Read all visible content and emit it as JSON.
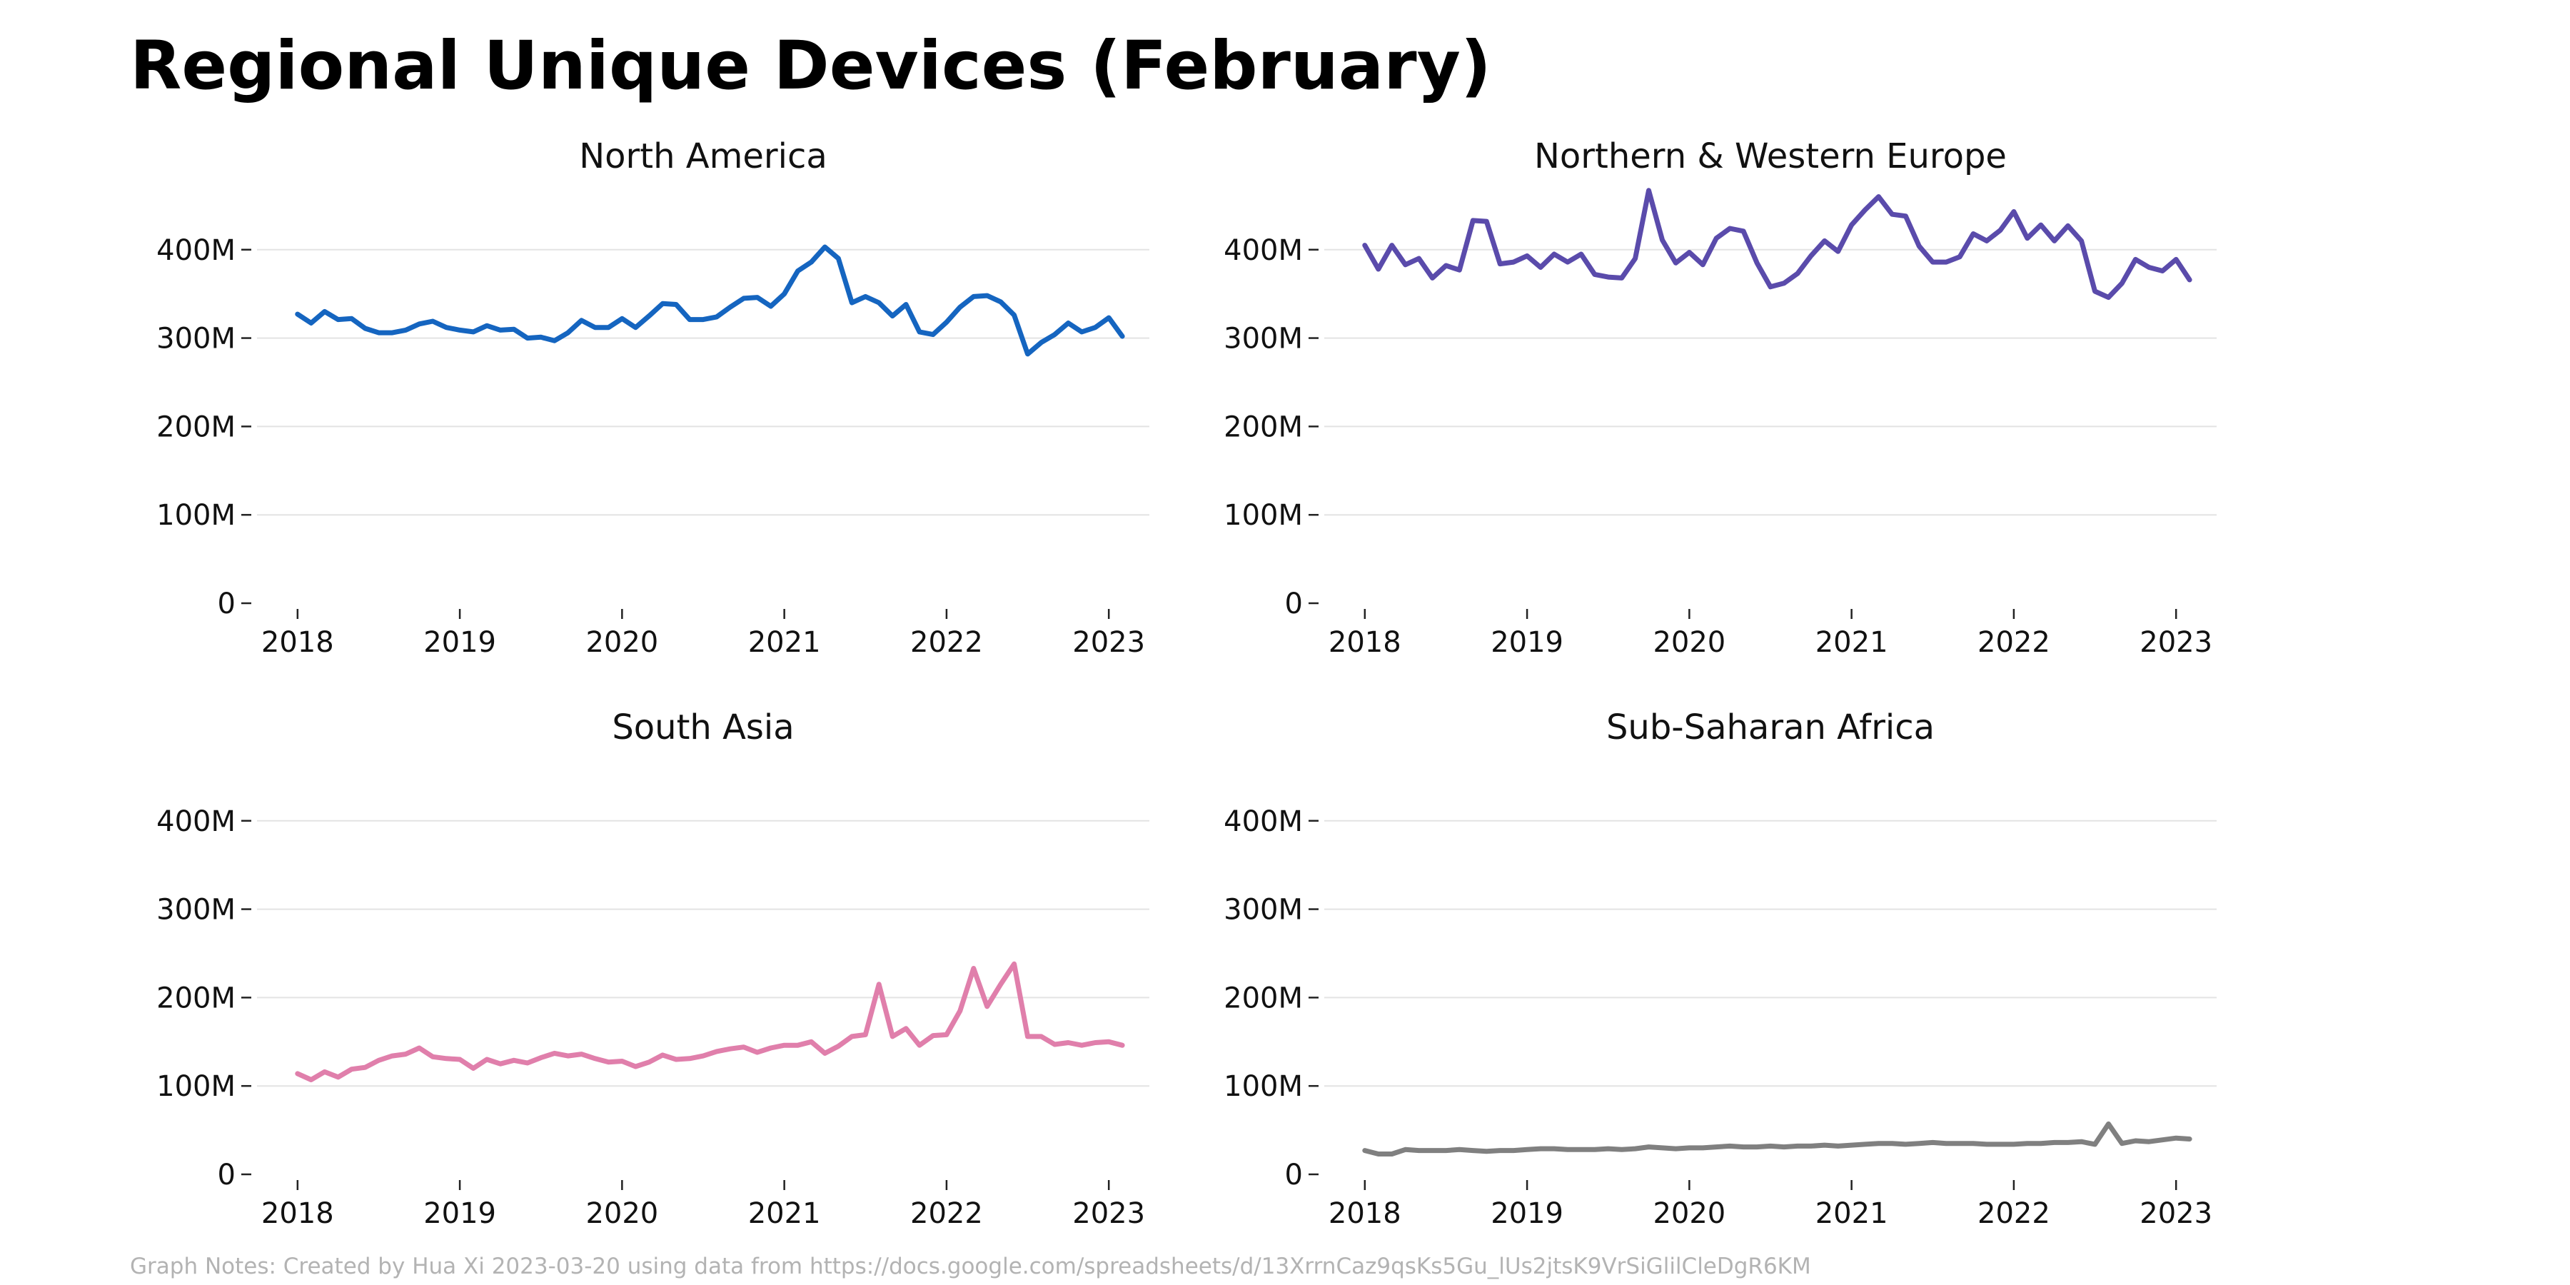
{
  "title": "Regional Unique Devices (February)",
  "footnote": "Graph Notes: Created by Hua Xi 2023-03-20 using data from https://docs.google.com/spreadsheets/d/13XrrnCaz9qsKs5Gu_lUs2jtsK9VrSiGlilCleDgR6KM",
  "chart_data": [
    {
      "type": "line",
      "title": "North America",
      "color": "#1565c0",
      "xlabel": "",
      "ylabel": "",
      "x_ticks": [
        "2018",
        "2019",
        "2020",
        "2021",
        "2022",
        "2023"
      ],
      "y_ticks": [
        {
          "value": 0,
          "label": "0"
        },
        {
          "value": 100,
          "label": "100M"
        },
        {
          "value": 200,
          "label": "200M"
        },
        {
          "value": 300,
          "label": "300M"
        },
        {
          "value": 400,
          "label": "400M"
        }
      ],
      "xlim": [
        2017.75,
        2023.25
      ],
      "ylim": [
        0,
        420
      ],
      "grid": "horizontal",
      "y_unit": "millions of unique devices",
      "x": [
        "2018-01",
        "2018-02",
        "2018-03",
        "2018-04",
        "2018-05",
        "2018-06",
        "2018-07",
        "2018-08",
        "2018-09",
        "2018-10",
        "2018-11",
        "2018-12",
        "2019-01",
        "2019-02",
        "2019-03",
        "2019-04",
        "2019-05",
        "2019-06",
        "2019-07",
        "2019-08",
        "2019-09",
        "2019-10",
        "2019-11",
        "2019-12",
        "2020-01",
        "2020-02",
        "2020-03",
        "2020-04",
        "2020-05",
        "2020-06",
        "2020-07",
        "2020-08",
        "2020-09",
        "2020-10",
        "2020-11",
        "2020-12",
        "2021-01",
        "2021-02",
        "2021-03",
        "2021-04",
        "2021-05",
        "2021-06",
        "2021-07",
        "2021-08",
        "2021-09",
        "2021-10",
        "2021-11",
        "2021-12",
        "2022-01",
        "2022-02",
        "2022-03",
        "2022-04",
        "2022-05",
        "2022-06",
        "2022-07",
        "2022-08",
        "2022-09",
        "2022-10",
        "2022-11",
        "2022-12",
        "2023-01",
        "2023-02"
      ],
      "values": [
        327,
        317,
        330,
        321,
        322,
        311,
        306,
        306,
        309,
        316,
        319,
        312,
        309,
        307,
        314,
        309,
        310,
        300,
        301,
        297,
        306,
        320,
        312,
        312,
        322,
        312,
        325,
        339,
        338,
        321,
        321,
        324,
        335,
        345,
        346,
        336,
        350,
        376,
        386,
        403,
        390,
        340,
        347,
        340,
        325,
        338,
        307,
        304,
        318,
        335,
        347,
        348,
        341,
        326,
        282,
        295,
        304,
        317,
        307,
        312,
        323,
        302
      ]
    },
    {
      "type": "line",
      "title": "Northern & Western Europe",
      "color": "#5a4bab",
      "xlabel": "",
      "ylabel": "",
      "x_ticks": [
        "2018",
        "2019",
        "2020",
        "2021",
        "2022",
        "2023"
      ],
      "y_ticks": [
        {
          "value": 0,
          "label": "0"
        },
        {
          "value": 100,
          "label": "100M"
        },
        {
          "value": 200,
          "label": "200M"
        },
        {
          "value": 300,
          "label": "300M"
        },
        {
          "value": 400,
          "label": "400M"
        }
      ],
      "xlim": [
        2017.75,
        2023.25
      ],
      "ylim": [
        0,
        420
      ],
      "grid": "horizontal",
      "y_unit": "millions of unique devices",
      "x": [
        "2018-01",
        "2018-02",
        "2018-03",
        "2018-04",
        "2018-05",
        "2018-06",
        "2018-07",
        "2018-08",
        "2018-09",
        "2018-10",
        "2018-11",
        "2018-12",
        "2019-01",
        "2019-02",
        "2019-03",
        "2019-04",
        "2019-05",
        "2019-06",
        "2019-07",
        "2019-08",
        "2019-09",
        "2019-10",
        "2019-11",
        "2019-12",
        "2020-01",
        "2020-02",
        "2020-03",
        "2020-04",
        "2020-05",
        "2020-06",
        "2020-07",
        "2020-08",
        "2020-09",
        "2020-10",
        "2020-11",
        "2020-12",
        "2021-01",
        "2021-02",
        "2021-03",
        "2021-04",
        "2021-05",
        "2021-06",
        "2021-07",
        "2021-08",
        "2021-09",
        "2021-10",
        "2021-11",
        "2021-12",
        "2022-01",
        "2022-02",
        "2022-03",
        "2022-04",
        "2022-05",
        "2022-06",
        "2022-07",
        "2022-08",
        "2022-09",
        "2022-10",
        "2022-11",
        "2022-12",
        "2023-01",
        "2023-02"
      ],
      "values": [
        405,
        378,
        405,
        383,
        390,
        368,
        382,
        377,
        433,
        432,
        384,
        386,
        393,
        380,
        395,
        386,
        395,
        372,
        369,
        368,
        390,
        467,
        411,
        385,
        397,
        383,
        413,
        424,
        421,
        385,
        358,
        362,
        373,
        393,
        410,
        398,
        428,
        445,
        460,
        440,
        438,
        404,
        386,
        386,
        392,
        418,
        410,
        422,
        443,
        413,
        428,
        410,
        427,
        410,
        353,
        346,
        362,
        389,
        380,
        376,
        389,
        366
      ]
    },
    {
      "type": "line",
      "title": "South Asia",
      "color": "#e07fab",
      "xlabel": "",
      "ylabel": "",
      "x_ticks": [
        "2018",
        "2019",
        "2020",
        "2021",
        "2022",
        "2023"
      ],
      "y_ticks": [
        {
          "value": 0,
          "label": "0"
        },
        {
          "value": 100,
          "label": "100M"
        },
        {
          "value": 200,
          "label": "200M"
        },
        {
          "value": 300,
          "label": "300M"
        },
        {
          "value": 400,
          "label": "400M"
        }
      ],
      "xlim": [
        2017.75,
        2023.25
      ],
      "ylim": [
        0,
        420
      ],
      "grid": "horizontal",
      "y_unit": "millions of unique devices",
      "x": [
        "2018-01",
        "2018-02",
        "2018-03",
        "2018-04",
        "2018-05",
        "2018-06",
        "2018-07",
        "2018-08",
        "2018-09",
        "2018-10",
        "2018-11",
        "2018-12",
        "2019-01",
        "2019-02",
        "2019-03",
        "2019-04",
        "2019-05",
        "2019-06",
        "2019-07",
        "2019-08",
        "2019-09",
        "2019-10",
        "2019-11",
        "2019-12",
        "2020-01",
        "2020-02",
        "2020-03",
        "2020-04",
        "2020-05",
        "2020-06",
        "2020-07",
        "2020-08",
        "2020-09",
        "2020-10",
        "2020-11",
        "2020-12",
        "2021-01",
        "2021-02",
        "2021-03",
        "2021-04",
        "2021-05",
        "2021-06",
        "2021-07",
        "2021-08",
        "2021-09",
        "2021-10",
        "2021-11",
        "2021-12",
        "2022-01",
        "2022-02",
        "2022-03",
        "2022-04",
        "2022-05",
        "2022-06",
        "2022-07",
        "2022-08",
        "2022-09",
        "2022-10",
        "2022-11",
        "2022-12",
        "2023-01",
        "2023-02"
      ],
      "values": [
        114,
        107,
        116,
        110,
        119,
        121,
        129,
        134,
        136,
        143,
        133,
        131,
        130,
        120,
        130,
        125,
        129,
        126,
        132,
        137,
        134,
        136,
        131,
        127,
        128,
        122,
        127,
        135,
        130,
        131,
        134,
        139,
        142,
        144,
        138,
        143,
        146,
        146,
        150,
        137,
        145,
        156,
        158,
        215,
        156,
        165,
        146,
        157,
        158,
        185,
        233,
        190,
        215,
        238,
        156,
        156,
        147,
        149,
        146,
        149,
        150,
        146
      ]
    },
    {
      "type": "line",
      "title": "Sub-Saharan Africa",
      "color": "#808080",
      "xlabel": "",
      "ylabel": "",
      "x_ticks": [
        "2018",
        "2019",
        "2020",
        "2021",
        "2022",
        "2023"
      ],
      "y_ticks": [
        {
          "value": 0,
          "label": "0"
        },
        {
          "value": 100,
          "label": "100M"
        },
        {
          "value": 200,
          "label": "200M"
        },
        {
          "value": 300,
          "label": "300M"
        },
        {
          "value": 400,
          "label": "400M"
        }
      ],
      "xlim": [
        2017.75,
        2023.25
      ],
      "ylim": [
        0,
        420
      ],
      "grid": "horizontal",
      "y_unit": "millions of unique devices",
      "x": [
        "2018-01",
        "2018-02",
        "2018-03",
        "2018-04",
        "2018-05",
        "2018-06",
        "2018-07",
        "2018-08",
        "2018-09",
        "2018-10",
        "2018-11",
        "2018-12",
        "2019-01",
        "2019-02",
        "2019-03",
        "2019-04",
        "2019-05",
        "2019-06",
        "2019-07",
        "2019-08",
        "2019-09",
        "2019-10",
        "2019-11",
        "2019-12",
        "2020-01",
        "2020-02",
        "2020-03",
        "2020-04",
        "2020-05",
        "2020-06",
        "2020-07",
        "2020-08",
        "2020-09",
        "2020-10",
        "2020-11",
        "2020-12",
        "2021-01",
        "2021-02",
        "2021-03",
        "2021-04",
        "2021-05",
        "2021-06",
        "2021-07",
        "2021-08",
        "2021-09",
        "2021-10",
        "2021-11",
        "2021-12",
        "2022-01",
        "2022-02",
        "2022-03",
        "2022-04",
        "2022-05",
        "2022-06",
        "2022-07",
        "2022-08",
        "2022-09",
        "2022-10",
        "2022-11",
        "2022-12",
        "2023-01",
        "2023-02"
      ],
      "values": [
        27,
        23,
        23,
        28,
        27,
        27,
        27,
        28,
        27,
        26,
        27,
        27,
        28,
        29,
        29,
        28,
        28,
        28,
        29,
        28,
        29,
        31,
        30,
        29,
        30,
        30,
        31,
        32,
        31,
        31,
        32,
        31,
        32,
        32,
        33,
        32,
        33,
        34,
        35,
        35,
        34,
        35,
        36,
        35,
        35,
        35,
        34,
        34,
        34,
        35,
        35,
        36,
        36,
        37,
        34,
        57,
        35,
        38,
        37,
        39,
        41,
        40
      ]
    }
  ]
}
